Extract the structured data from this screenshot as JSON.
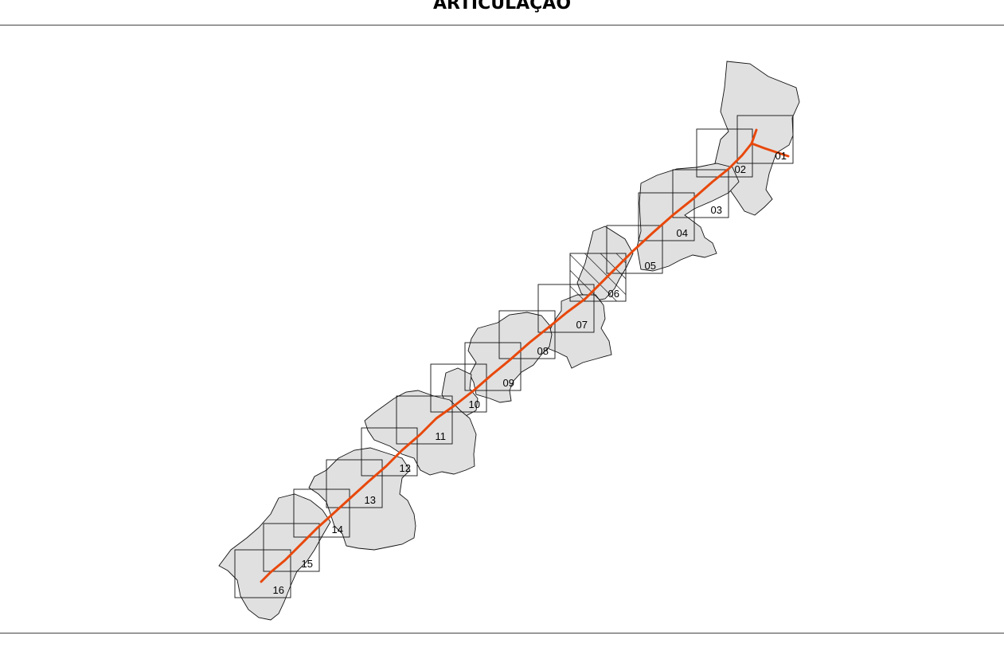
{
  "title": "ARTICULAÇÃO",
  "map": {
    "municipality_fill": "#e0e0e0",
    "municipality_stroke": "#111111",
    "route_color": "#e8480c",
    "frame_stroke": "#111111",
    "highlighted_sheet": "06",
    "sheets": [
      {
        "label": "01"
      },
      {
        "label": "02"
      },
      {
        "label": "03"
      },
      {
        "label": "04"
      },
      {
        "label": "05"
      },
      {
        "label": "06"
      },
      {
        "label": "07"
      },
      {
        "label": "08"
      },
      {
        "label": "09"
      },
      {
        "label": "10"
      },
      {
        "label": "11"
      },
      {
        "label": "12"
      },
      {
        "label": "13"
      },
      {
        "label": "14"
      },
      {
        "label": "15"
      },
      {
        "label": "16"
      }
    ]
  }
}
